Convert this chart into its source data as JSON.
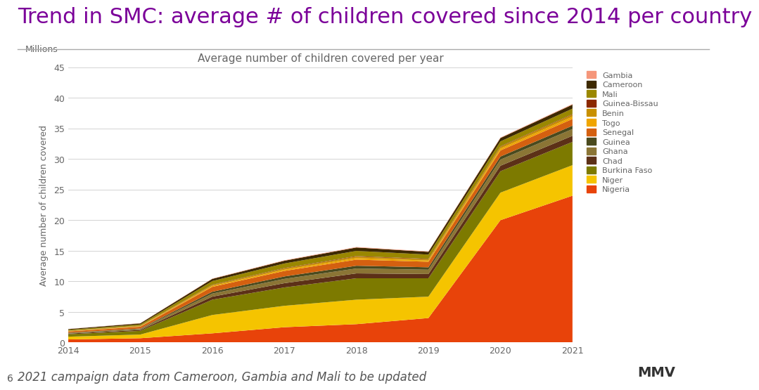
{
  "title": "Trend in SMC: average # of children covered since 2014 per country",
  "subtitle": "Average number of children covered per year",
  "ylabel": "Average number of children covered",
  "ylabel_millions": "Millions",
  "years": [
    2014,
    2015,
    2016,
    2017,
    2018,
    2019,
    2020,
    2021
  ],
  "countries": [
    "Nigeria",
    "Niger",
    "Burkina Faso",
    "Chad",
    "Ghana",
    "Guinea",
    "Senegal",
    "Togo",
    "Benin",
    "Guinea-Bissau",
    "Mali",
    "Cameroon",
    "Gambia"
  ],
  "colors": [
    "#E8430A",
    "#F5C400",
    "#7D7A00",
    "#5C3017",
    "#8B7535",
    "#4A4A1E",
    "#D46010",
    "#F0A500",
    "#C89000",
    "#8B2800",
    "#9A8700",
    "#3D2900",
    "#F5967A"
  ],
  "data": {
    "Nigeria": [
      0.5,
      0.7,
      1.5,
      2.5,
      3.0,
      4.0,
      20.0,
      24.0
    ],
    "Niger": [
      0.45,
      0.6,
      3.0,
      3.5,
      4.0,
      3.5,
      4.5,
      5.0
    ],
    "Burkina Faso": [
      0.4,
      0.6,
      2.5,
      3.0,
      3.5,
      3.0,
      3.5,
      3.8
    ],
    "Chad": [
      0.1,
      0.15,
      0.5,
      0.7,
      0.8,
      0.7,
      0.9,
      1.0
    ],
    "Ghana": [
      0.1,
      0.15,
      0.5,
      0.7,
      0.8,
      0.7,
      1.0,
      1.1
    ],
    "Guinea": [
      0.05,
      0.08,
      0.3,
      0.4,
      0.45,
      0.4,
      0.5,
      0.55
    ],
    "Senegal": [
      0.2,
      0.3,
      0.8,
      0.9,
      1.0,
      0.9,
      1.0,
      1.1
    ],
    "Togo": [
      0.05,
      0.07,
      0.15,
      0.2,
      0.25,
      0.2,
      0.3,
      0.35
    ],
    "Benin": [
      0.05,
      0.07,
      0.15,
      0.2,
      0.25,
      0.2,
      0.3,
      0.35
    ],
    "Guinea-Bissau": [
      0.02,
      0.03,
      0.05,
      0.07,
      0.08,
      0.07,
      0.08,
      0.09
    ],
    "Mali": [
      0.15,
      0.2,
      0.6,
      0.75,
      0.85,
      0.7,
      0.8,
      0.9
    ],
    "Cameroon": [
      0.12,
      0.18,
      0.35,
      0.45,
      0.55,
      0.45,
      0.55,
      0.65
    ],
    "Gambia": [
      0.02,
      0.03,
      0.05,
      0.07,
      0.08,
      0.07,
      0.08,
      0.1
    ]
  },
  "ylim": [
    0,
    45
  ],
  "yticks": [
    0,
    5,
    10,
    15,
    20,
    25,
    30,
    35,
    40,
    45
  ],
  "title_color": "#7B0099",
  "title_fontsize": 22,
  "subtitle_fontsize": 11,
  "axis_label_fontsize": 9,
  "tick_fontsize": 9,
  "background_color": "#FFFFFF",
  "footer_text": "2021 campaign data from Cameroon, Gambia and Mali to be updated",
  "footer_fontsize": 12,
  "line_color": "#AAAAAA"
}
